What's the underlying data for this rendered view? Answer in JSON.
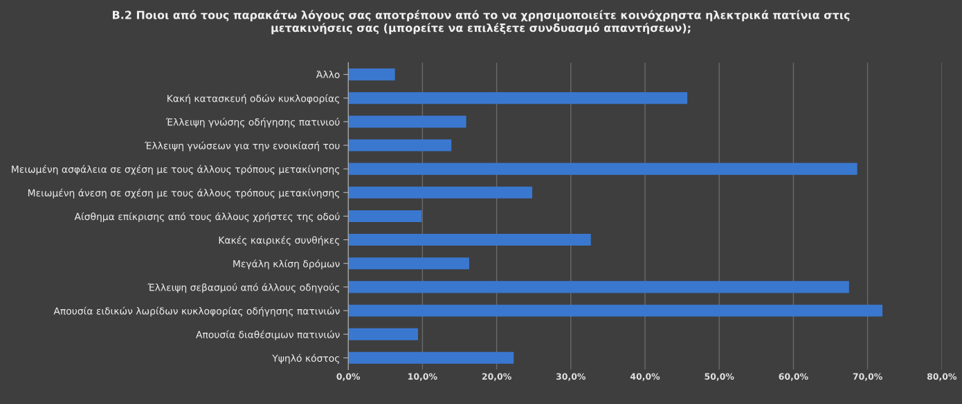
{
  "chart_data": {
    "type": "bar",
    "orientation": "horizontal",
    "title": "B.2 Ποιοι από τους παρακάτω λόγους σας αποτρέπουν από το να χρησιμοποιείτε κοινόχρηστα ηλεκτρικά πατίνια στις\nμετακινήσεις σας (μπορείτε να επιλέξετε συνδυασμό απαντήσεων);",
    "categories": [
      "Άλλο",
      "Κακή κατασκευή οδών κυκλοφορίας",
      "Έλλειψη γνώσης οδήγησης πατινιού",
      "Έλλειψη γνώσεων για την ενοικίασή του",
      "Μειωμένη ασφάλεια σε σχέση με τους άλλους τρόπους μετακίνησης",
      "Μειωμένη άνεση σε σχέση με τους άλλους τρόπους μετακίνησης",
      "Αίσθημα επίκρισης από τους άλλους χρήστες της οδού",
      "Κακές καιρικές συνθήκες",
      "Μεγάλη κλίση δρόμων",
      "Έλλειψη σεβασμού από άλλους οδηγούς",
      "Απουσία ειδικών λωρίδων κυκλοφορίας οδήγησης πατινιών",
      "Απουσία διαθέσιμων πατινιών",
      "Υψηλό κόστος"
    ],
    "values": [
      6.3,
      45.7,
      15.9,
      13.9,
      68.6,
      24.8,
      9.9,
      32.7,
      16.3,
      67.5,
      72.0,
      9.4,
      22.3
    ],
    "color": "#3a78d0",
    "xlim": [
      0,
      80
    ],
    "xticks": [
      {
        "value": 0,
        "label": "0,0%"
      },
      {
        "value": 10,
        "label": "10,0%"
      },
      {
        "value": 20,
        "label": "20,0%"
      },
      {
        "value": 30,
        "label": "30,0%"
      },
      {
        "value": 40,
        "label": "40,0%"
      },
      {
        "value": 50,
        "label": "50,0%"
      },
      {
        "value": 60,
        "label": "60,0%"
      },
      {
        "value": 70,
        "label": "70,0%"
      },
      {
        "value": 80,
        "label": "80,0%"
      }
    ],
    "grid": "x",
    "legend": false
  }
}
